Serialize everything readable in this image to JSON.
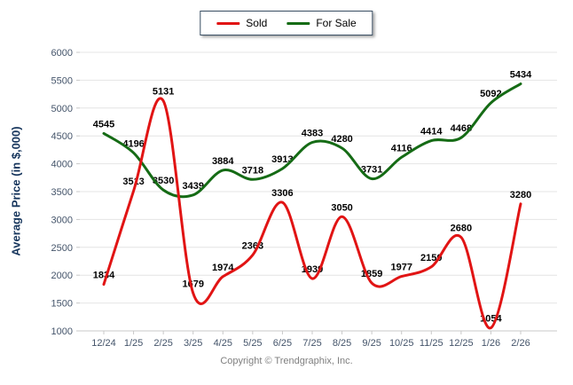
{
  "legend": {
    "items": [
      {
        "label": "Sold",
        "color": "#e11414"
      },
      {
        "label": "For Sale",
        "color": "#156b15"
      }
    ]
  },
  "footer": {
    "copyright": "Copyright © Trendgraphix, Inc."
  },
  "theme": {
    "grid_color": "#e4e4e4",
    "axis_color": "#c8c8c8",
    "tick_label_color": "#44546a",
    "data_label_color": "#000000",
    "y_title_color": "#17365d",
    "background": "#ffffff"
  },
  "chart_data": {
    "type": "line",
    "title": "",
    "xlabel": "",
    "ylabel": "Average Price (in $,000)",
    "categories": [
      "12/24",
      "1/25",
      "2/25",
      "3/25",
      "4/25",
      "5/25",
      "6/25",
      "7/25",
      "8/25",
      "9/25",
      "10/25",
      "11/25",
      "12/25",
      "1/26",
      "2/26"
    ],
    "series": [
      {
        "name": "Sold",
        "color": "#e11414",
        "values": [
          1834,
          3513,
          5131,
          1679,
          1974,
          2363,
          3306,
          1939,
          3050,
          1859,
          1977,
          2150,
          2680,
          1054,
          3280
        ]
      },
      {
        "name": "For Sale",
        "color": "#156b15",
        "values": [
          4545,
          4196,
          3530,
          3439,
          3884,
          3718,
          3913,
          4383,
          4280,
          3731,
          4116,
          4414,
          4468,
          5092,
          5434
        ]
      }
    ],
    "ylim": [
      1000,
      6000
    ],
    "ytick_step": 500,
    "grid": "horizontal",
    "legend_position": "top-center",
    "line_smoothing": true,
    "data_labels": true
  }
}
